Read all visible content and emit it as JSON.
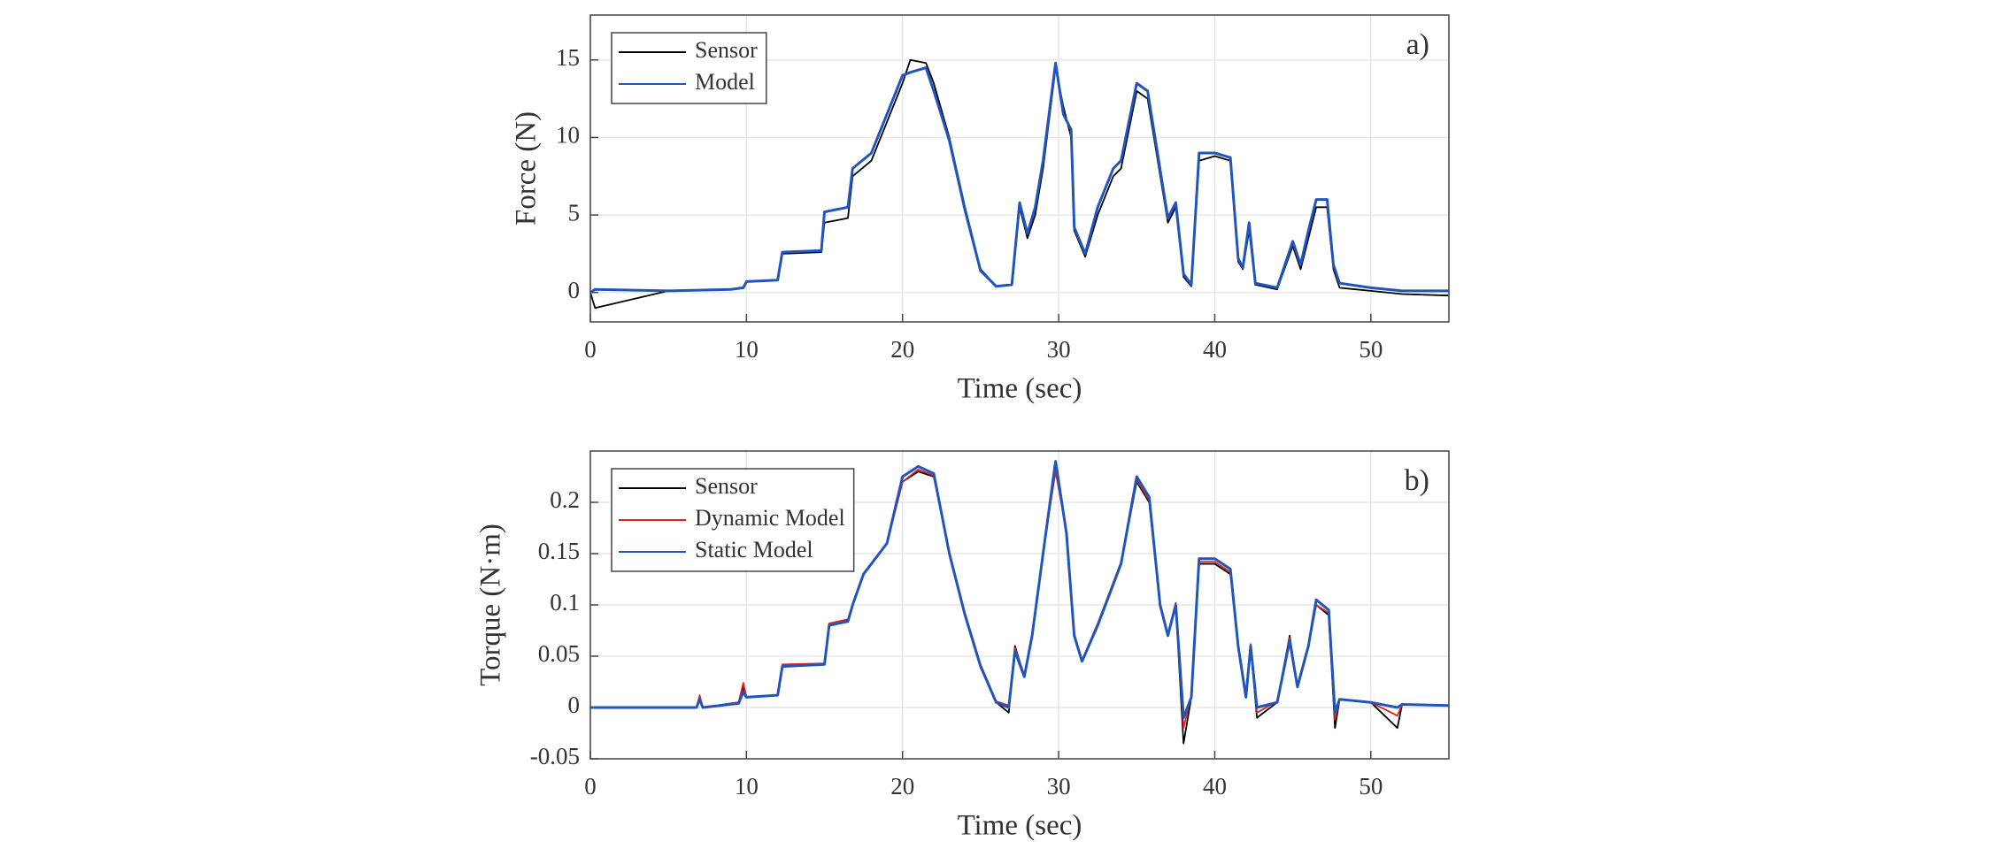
{
  "chart_data": [
    {
      "type": "line",
      "label": "a)",
      "xlabel": "Time (sec)",
      "ylabel": "Force (N)",
      "xlim": [
        0,
        55
      ],
      "xticks": [
        0,
        10,
        20,
        30,
        40,
        50
      ],
      "ylim": [
        -1.9,
        17.9
      ],
      "yticks": [
        0,
        5,
        10,
        15
      ],
      "grid": true,
      "legend": "upper left",
      "x": [
        0,
        0.3,
        5,
        9,
        9.8,
        10,
        12,
        12.3,
        14.8,
        15,
        16.5,
        16.8,
        18,
        19,
        20,
        20.5,
        21.5,
        22,
        23,
        24,
        25,
        26,
        27,
        27.5,
        28,
        28.5,
        29,
        29.8,
        30.3,
        30.8,
        31,
        31.7,
        32.5,
        33.5,
        34,
        35,
        35.7,
        37,
        37.5,
        38,
        38.5,
        39,
        40,
        41,
        41.5,
        41.8,
        42.2,
        42.6,
        44,
        45,
        45.5,
        46,
        46.5,
        47.2,
        47.6,
        48,
        50,
        52,
        55
      ],
      "series": [
        {
          "name": "Sensor",
          "color": "#000000",
          "values": [
            0,
            -1,
            0.1,
            0.2,
            0.3,
            0.7,
            0.8,
            2.5,
            2.6,
            4.5,
            4.8,
            7.5,
            8.5,
            11,
            13.5,
            15,
            14.8,
            13.5,
            10,
            5.5,
            1.5,
            0.4,
            0.5,
            5.5,
            3.5,
            5,
            8,
            14.5,
            12,
            10,
            4,
            2.3,
            5,
            7.5,
            8,
            13,
            12.5,
            4.5,
            5.5,
            1,
            0.4,
            8.5,
            8.8,
            8.5,
            2,
            1.5,
            4,
            0.5,
            0.2,
            3,
            1.5,
            3.5,
            5.5,
            5.5,
            1.5,
            0.3,
            0.1,
            -0.1,
            -0.2
          ]
        },
        {
          "name": "Model",
          "color": "#2255bb",
          "values": [
            0,
            0.2,
            0.1,
            0.2,
            0.3,
            0.7,
            0.8,
            2.6,
            2.7,
            5.2,
            5.5,
            8,
            9,
            11.5,
            14,
            14.2,
            14.5,
            13,
            9.8,
            5.3,
            1.4,
            0.4,
            0.5,
            5.8,
            3.8,
            5.5,
            8.5,
            14.8,
            11.5,
            10.5,
            4.2,
            2.5,
            5.5,
            8,
            8.5,
            13.5,
            13,
            4.8,
            5.8,
            1.2,
            0.5,
            9,
            9,
            8.7,
            2.2,
            1.6,
            4.5,
            0.6,
            0.3,
            3.3,
            1.8,
            4,
            6,
            6,
            1.8,
            0.6,
            0.3,
            0.1,
            0.1
          ]
        }
      ]
    },
    {
      "type": "line",
      "label": "b)",
      "xlabel": "Time (sec)",
      "ylabel": "Torque (N·m)",
      "xlim": [
        0,
        55
      ],
      "xticks": [
        0,
        10,
        20,
        30,
        40,
        50
      ],
      "ylim": [
        -0.05,
        0.25
      ],
      "yticks": [
        -0.05,
        0,
        0.05,
        0.1,
        0.15,
        0.2
      ],
      "grid": true,
      "legend": "upper left",
      "x": [
        0,
        6.8,
        7,
        7.2,
        9.5,
        9.8,
        10,
        12,
        12.3,
        15,
        15.3,
        16.5,
        16.8,
        17.5,
        19,
        20,
        21,
        22,
        23,
        24,
        25,
        26,
        26.8,
        27.2,
        27.8,
        28.3,
        29,
        29.8,
        30.5,
        31,
        31.5,
        32.5,
        34,
        35,
        35.8,
        36.5,
        37,
        37.5,
        38,
        38.5,
        39,
        40,
        41,
        41.5,
        42,
        42.3,
        42.7,
        44,
        44.8,
        45.3,
        46,
        46.5,
        47.3,
        47.7,
        48,
        50,
        51.7,
        52,
        55
      ],
      "series": [
        {
          "name": "Sensor",
          "color": "#000000",
          "values": [
            0,
            0,
            0.01,
            0,
            0.005,
            0.02,
            0.01,
            0.012,
            0.04,
            0.042,
            0.08,
            0.085,
            0.1,
            0.13,
            0.16,
            0.22,
            0.23,
            0.225,
            0.15,
            0.09,
            0.04,
            0.005,
            -0.005,
            0.06,
            0.03,
            0.07,
            0.15,
            0.235,
            0.17,
            0.07,
            0.045,
            0.08,
            0.14,
            0.22,
            0.2,
            0.1,
            0.07,
            0.1,
            -0.035,
            0.01,
            0.14,
            0.14,
            0.13,
            0.06,
            0.01,
            0.06,
            -0.01,
            0.005,
            0.07,
            0.02,
            0.06,
            0.1,
            0.09,
            -0.02,
            0.008,
            0.005,
            -0.02,
            0.003,
            0.002
          ]
        },
        {
          "name": "Dynamic Model",
          "color": "#dd2222",
          "values": [
            0,
            0,
            0.012,
            0,
            0.005,
            0.024,
            0.01,
            0.012,
            0.042,
            0.043,
            0.082,
            0.086,
            0.1,
            0.13,
            0.16,
            0.22,
            0.232,
            0.226,
            0.152,
            0.092,
            0.042,
            0.006,
            0.002,
            0.058,
            0.032,
            0.072,
            0.152,
            0.23,
            0.172,
            0.072,
            0.046,
            0.082,
            0.142,
            0.222,
            0.202,
            0.102,
            0.072,
            0.102,
            -0.02,
            0.012,
            0.142,
            0.142,
            0.132,
            0.062,
            0.012,
            0.062,
            -0.005,
            0.006,
            0.068,
            0.022,
            0.062,
            0.1,
            0.092,
            -0.012,
            0.008,
            0.005,
            -0.008,
            0.003,
            0.002
          ]
        },
        {
          "name": "Static Model",
          "color": "#2255bb",
          "values": [
            0,
            0,
            0.008,
            0,
            0.004,
            0.015,
            0.01,
            0.012,
            0.04,
            0.042,
            0.08,
            0.084,
            0.1,
            0.13,
            0.16,
            0.225,
            0.235,
            0.228,
            0.15,
            0.09,
            0.04,
            0.005,
            0,
            0.055,
            0.03,
            0.07,
            0.15,
            0.24,
            0.17,
            0.07,
            0.045,
            0.08,
            0.14,
            0.225,
            0.205,
            0.1,
            0.07,
            0.1,
            -0.01,
            0.01,
            0.145,
            0.145,
            0.135,
            0.06,
            0.01,
            0.06,
            0,
            0.005,
            0.065,
            0.02,
            0.06,
            0.105,
            0.095,
            -0.005,
            0.008,
            0.005,
            0,
            0.003,
            0.002
          ]
        }
      ]
    }
  ]
}
